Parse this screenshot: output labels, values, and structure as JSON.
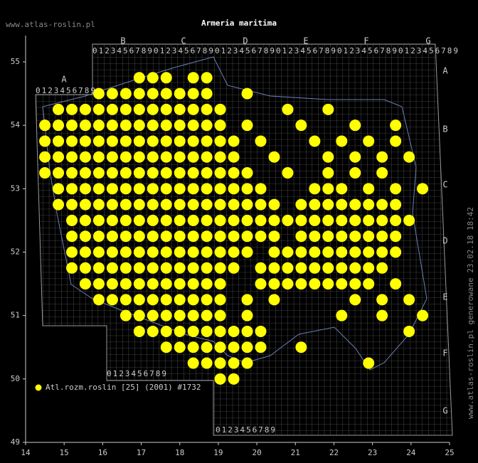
{
  "chart_data": {
    "type": "map",
    "title": "Armeria maritima",
    "site": "www.atlas-roslin.pl",
    "side_note": "www.atlas-roslin.pl generowane 23.02.18 18:42",
    "legend": "Atl.rozm.roslin [25] (2001) #1732",
    "point_color": "#ffff00",
    "xlim": [
      14,
      25
    ],
    "ylim": [
      49,
      55
    ],
    "xticks": [
      14,
      15,
      16,
      17,
      18,
      19,
      20,
      21,
      22,
      23,
      24,
      25
    ],
    "yticks": [
      49,
      50,
      51,
      52,
      53,
      54,
      55
    ],
    "grid_digits": "0123456789",
    "grid_columns": [
      "A",
      "B",
      "C",
      "D",
      "E",
      "F",
      "G"
    ],
    "grid_rows": [
      "A",
      "B",
      "C",
      "D",
      "E",
      "F",
      "G"
    ],
    "points": [
      {
        "lat": 54.75,
        "lon": [
          16.95,
          17.3,
          17.65,
          18.35,
          18.7
        ]
      },
      {
        "lat": 54.5,
        "lon": [
          15.9,
          16.25,
          16.6,
          16.95,
          17.3,
          17.65,
          18.0,
          18.35,
          18.7,
          19.75
        ]
      },
      {
        "lat": 54.25,
        "lon": [
          14.85,
          15.2,
          15.55,
          15.9,
          16.25,
          16.6,
          16.95,
          17.3,
          17.65,
          18.0,
          18.35,
          18.7,
          19.05,
          20.8,
          21.85
        ]
      },
      {
        "lat": 54.0,
        "lon": [
          14.5,
          14.85,
          15.2,
          15.55,
          15.9,
          16.25,
          16.6,
          16.95,
          17.3,
          17.65,
          18.0,
          18.35,
          18.7,
          19.05,
          19.75,
          21.15,
          22.55,
          23.6
        ]
      },
      {
        "lat": 53.75,
        "lon": [
          14.5,
          14.85,
          15.2,
          15.55,
          15.9,
          16.25,
          16.6,
          16.95,
          17.3,
          17.65,
          18.0,
          18.35,
          18.7,
          19.05,
          19.4,
          20.1,
          21.5,
          22.2,
          22.9,
          23.6
        ]
      },
      {
        "lat": 53.5,
        "lon": [
          14.5,
          14.85,
          15.2,
          15.55,
          15.9,
          16.25,
          16.6,
          16.95,
          17.3,
          17.65,
          18.0,
          18.35,
          18.7,
          19.05,
          19.4,
          20.45,
          21.85,
          22.55,
          23.25,
          23.95
        ]
      },
      {
        "lat": 53.25,
        "lon": [
          14.5,
          14.85,
          15.2,
          15.55,
          15.9,
          16.25,
          16.6,
          16.95,
          17.3,
          17.65,
          18.0,
          18.35,
          18.7,
          19.05,
          19.4,
          19.75,
          20.8,
          21.85,
          22.55,
          23.25
        ]
      },
      {
        "lat": 53.0,
        "lon": [
          14.85,
          15.2,
          15.55,
          15.9,
          16.25,
          16.6,
          16.95,
          17.3,
          17.65,
          18.0,
          18.35,
          18.7,
          19.05,
          19.4,
          19.75,
          20.1,
          21.5,
          21.85,
          22.2,
          22.9,
          23.6,
          24.3
        ]
      },
      {
        "lat": 52.75,
        "lon": [
          14.85,
          15.2,
          15.55,
          15.9,
          16.25,
          16.6,
          16.95,
          17.3,
          17.65,
          18.0,
          18.35,
          18.7,
          19.05,
          19.4,
          19.75,
          20.1,
          20.45,
          21.15,
          21.5,
          21.85,
          22.2,
          22.55,
          22.9,
          23.25,
          23.6
        ]
      },
      {
        "lat": 52.5,
        "lon": [
          15.2,
          15.55,
          15.9,
          16.25,
          16.6,
          16.95,
          17.3,
          17.65,
          18.0,
          18.35,
          18.7,
          19.05,
          19.4,
          19.75,
          20.1,
          20.45,
          20.8,
          21.15,
          21.5,
          21.85,
          22.2,
          22.55,
          22.9,
          23.25,
          23.6,
          23.95
        ]
      },
      {
        "lat": 52.25,
        "lon": [
          15.2,
          15.55,
          15.9,
          16.25,
          16.6,
          16.95,
          17.3,
          17.65,
          18.0,
          18.35,
          18.7,
          19.05,
          19.4,
          19.75,
          20.1,
          20.45,
          21.15,
          21.5,
          21.85,
          22.2,
          22.55,
          22.9,
          23.25,
          23.6
        ]
      },
      {
        "lat": 52.0,
        "lon": [
          15.2,
          15.55,
          15.9,
          16.25,
          16.6,
          16.95,
          17.3,
          17.65,
          18.0,
          18.35,
          18.7,
          19.05,
          19.4,
          19.75,
          20.45,
          20.8,
          21.15,
          21.5,
          21.85,
          22.2,
          22.55,
          22.9,
          23.25,
          23.6
        ]
      },
      {
        "lat": 51.75,
        "lon": [
          15.2,
          15.55,
          15.9,
          16.25,
          16.6,
          16.95,
          17.3,
          17.65,
          18.0,
          18.35,
          18.7,
          19.05,
          19.4,
          20.1,
          20.45,
          20.8,
          21.15,
          21.5,
          21.85,
          22.2,
          22.55,
          22.9,
          23.25
        ]
      },
      {
        "lat": 51.5,
        "lon": [
          15.55,
          15.9,
          16.25,
          16.6,
          16.95,
          17.3,
          17.65,
          18.0,
          18.35,
          18.7,
          19.05,
          20.1,
          20.45,
          20.8,
          21.15,
          21.5,
          21.85,
          22.2,
          22.55,
          22.9,
          23.6
        ]
      },
      {
        "lat": 51.25,
        "lon": [
          15.9,
          16.25,
          16.6,
          16.95,
          17.3,
          17.65,
          18.0,
          18.35,
          18.7,
          19.05,
          19.75,
          20.45,
          22.55,
          23.25,
          23.95
        ]
      },
      {
        "lat": 51.0,
        "lon": [
          16.6,
          16.95,
          17.3,
          17.65,
          18.0,
          18.35,
          18.7,
          19.05,
          19.75,
          22.2,
          23.25,
          24.3
        ]
      },
      {
        "lat": 50.75,
        "lon": [
          16.95,
          17.3,
          17.65,
          18.0,
          18.35,
          18.7,
          19.05,
          19.4,
          19.75,
          20.1,
          23.95
        ]
      },
      {
        "lat": 50.5,
        "lon": [
          17.65,
          18.0,
          18.35,
          18.7,
          19.05,
          19.4,
          19.75,
          20.1,
          21.15
        ]
      },
      {
        "lat": 50.25,
        "lon": [
          18.35,
          18.7,
          19.05,
          19.4,
          19.75,
          22.9
        ]
      },
      {
        "lat": 50.0,
        "lon": [
          19.05,
          19.4
        ]
      }
    ]
  }
}
